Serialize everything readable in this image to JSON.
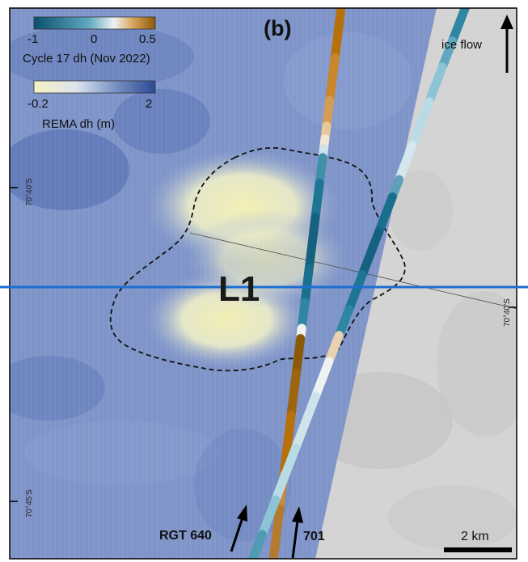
{
  "panel_label": "(b)",
  "legend": {
    "cycle_ticks": [
      "-1",
      "0",
      "0.5"
    ],
    "cycle_title": "Cycle 17 dh (Nov 2022)",
    "rema_ticks": [
      "-0.2",
      "2"
    ],
    "rema_title": "REMA dh (m)"
  },
  "ice_flow_label": "ice flow",
  "lake_label": "L1",
  "track_labels": {
    "rgt": "RGT 640",
    "rgt2": "701"
  },
  "lat_labels": [
    "70°40'S",
    "70°40'S",
    "70°45'S"
  ],
  "scale_label": "2 km",
  "colors": {
    "rema_low": "#f4f0b8",
    "rema_high": "#3a55a0",
    "cycle_neg": "#1e6f8c",
    "cycle_zero": "#eef2f2",
    "cycle_pos": "#b8700a",
    "horizon_line": "#1a6fd0",
    "rock_gray": "#d3d3d3"
  }
}
